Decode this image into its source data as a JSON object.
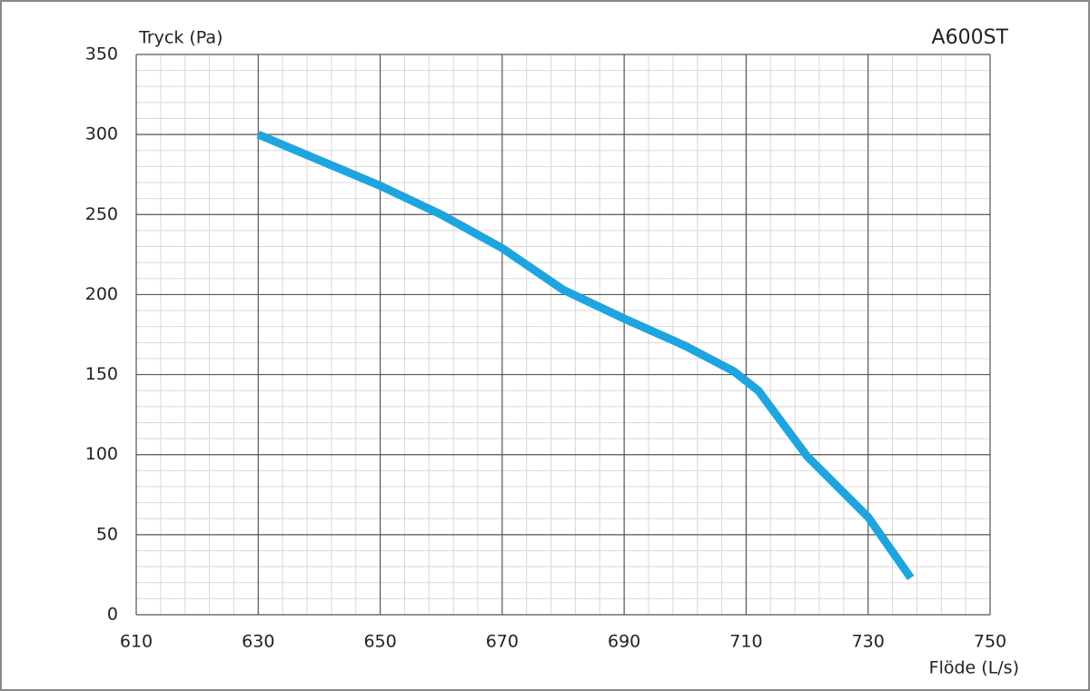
{
  "chart_data": {
    "type": "line",
    "title": "A600ST",
    "y_label": "Tryck (Pa)",
    "x_label": "Flöde (L/s)",
    "x": [
      630,
      640,
      650,
      660,
      670,
      680,
      690,
      700,
      708,
      712,
      720,
      730,
      737
    ],
    "series": [
      {
        "name": "A600ST",
        "color": "#1ea5df",
        "values": [
          300,
          284,
          268,
          250,
          229,
          203,
          185,
          168,
          152,
          140,
          99,
          61,
          23
        ]
      }
    ],
    "xlim": [
      610,
      750
    ],
    "xticks": [
      610,
      630,
      650,
      670,
      690,
      710,
      730,
      750
    ],
    "ylim": [
      0,
      350
    ],
    "yticks": [
      0,
      50,
      100,
      150,
      200,
      250,
      300,
      350
    ],
    "grid": true,
    "minor_grid": true
  }
}
